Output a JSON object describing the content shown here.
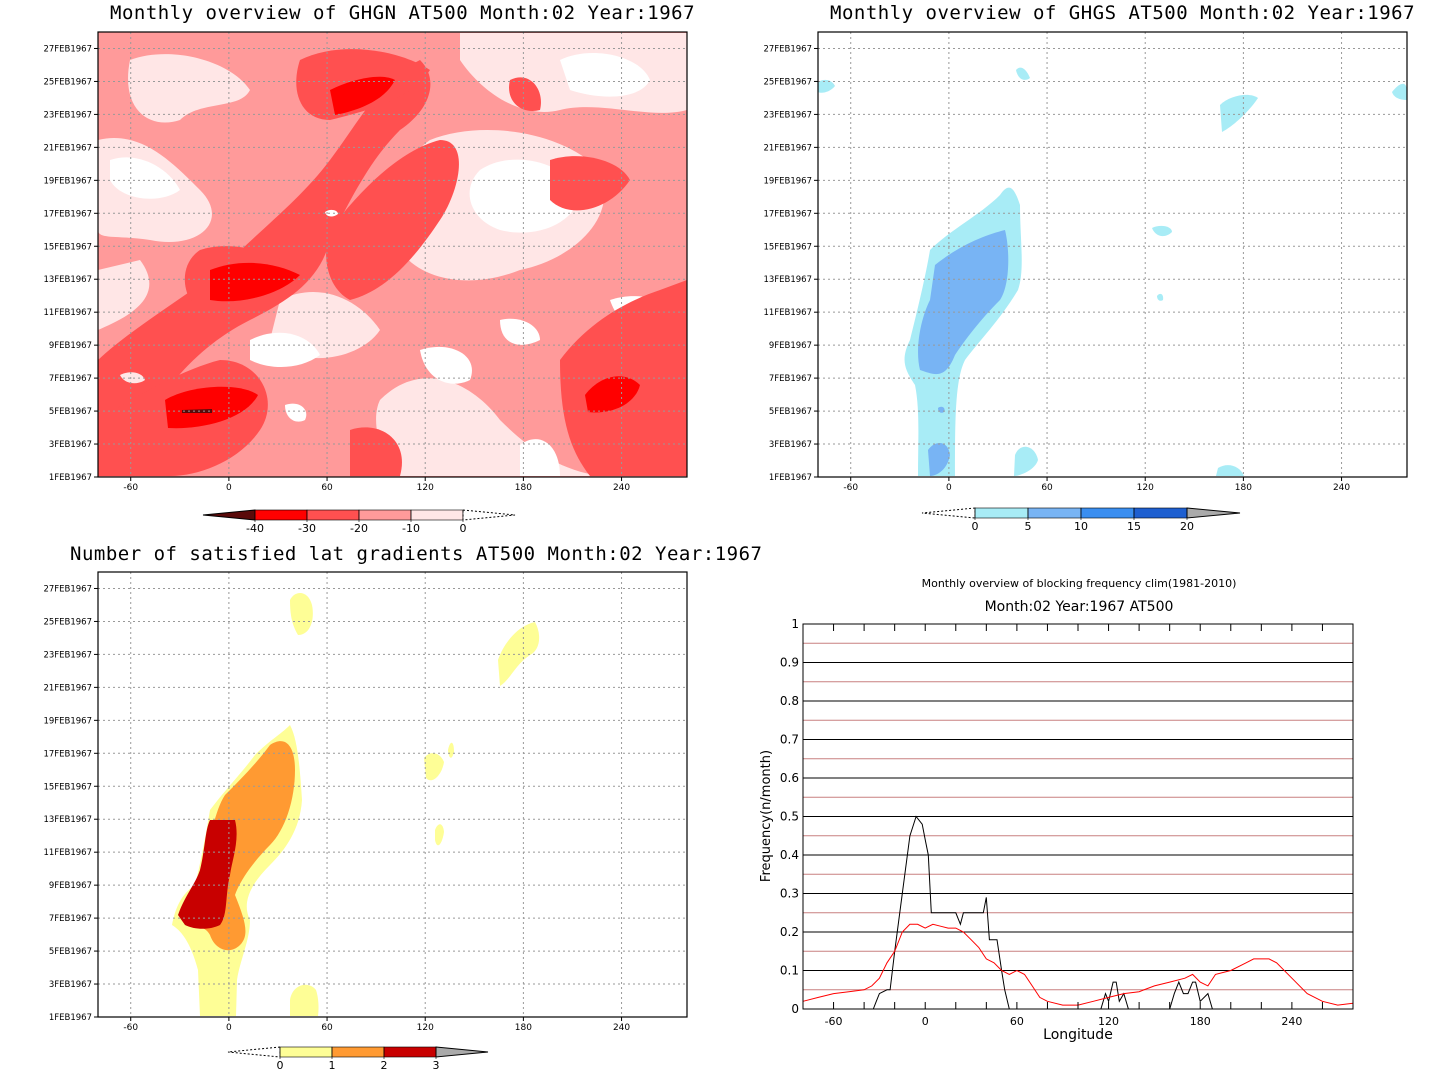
{
  "panels": {
    "ghgn": {
      "title": "Monthly overview of GHGN AT500 Month:02 Year:1967",
      "colorbar_labels": [
        "-40",
        "-30",
        "-20",
        "-10",
        "0"
      ],
      "colors": [
        "#5a0a0a",
        "#ff0000",
        "#ff5050",
        "#ff9a9a",
        "#ffe6e6",
        "#ffffff"
      ]
    },
    "ghgs": {
      "title": "Monthly overview of GHGS AT500 Month:02 Year:1967",
      "colorbar_labels": [
        "0",
        "5",
        "10",
        "15",
        "20"
      ],
      "colors": [
        "#ffffff",
        "#a8ecf6",
        "#78b4f4",
        "#3a8ef0",
        "#1e5fd0",
        "#aaaaaa"
      ]
    },
    "grad": {
      "title": "Number of satisfied lat gradients AT500 Month:02 Year:1967",
      "colorbar_labels": [
        "0",
        "1",
        "2",
        "3"
      ],
      "colors": [
        "#ffffff",
        "#fefe96",
        "#ff9a32",
        "#c80000",
        "#aaaaaa"
      ]
    },
    "freq": {
      "title": "Monthly overview of blocking frequency clim(1981-2010)",
      "subtitle": "Month:02 Year:1967  AT500"
    }
  },
  "axes": {
    "y_ticks": [
      "1FEB1967",
      "3FEB1967",
      "5FEB1967",
      "7FEB1967",
      "9FEB1967",
      "11FEB1967",
      "13FEB1967",
      "15FEB1967",
      "17FEB1967",
      "19FEB1967",
      "21FEB1967",
      "23FEB1967",
      "25FEB1967",
      "27FEB1967"
    ],
    "x_ticks": [
      "-60",
      "0",
      "60",
      "120",
      "180",
      "240"
    ],
    "freq_y_ticks": [
      "0",
      "0.1",
      "0.2",
      "0.3",
      "0.4",
      "0.5",
      "0.6",
      "0.7",
      "0.8",
      "0.9",
      "1"
    ],
    "freq_xlabel": "Longitude",
    "freq_ylabel": "Frequency(n/month)"
  },
  "chart_data": [
    {
      "type": "heatmap",
      "title": "Monthly overview of GHGN AT500 Month:02 Year:1967",
      "x_range": [
        -80,
        280
      ],
      "y_range": [
        "1FEB1967",
        "28FEB1967"
      ],
      "levels": [
        -40,
        -30,
        -20,
        -10,
        0
      ],
      "grid": true
    },
    {
      "type": "heatmap",
      "title": "Monthly overview of GHGS AT500 Month:02 Year:1967",
      "x_range": [
        -80,
        280
      ],
      "y_range": [
        "1FEB1967",
        "28FEB1967"
      ],
      "levels": [
        0,
        5,
        10,
        15,
        20
      ],
      "grid": true
    },
    {
      "type": "heatmap",
      "title": "Number of satisfied lat gradients AT500 Month:02 Year:1967",
      "x_range": [
        -80,
        280
      ],
      "y_range": [
        "1FEB1967",
        "28FEB1967"
      ],
      "levels": [
        0,
        1,
        2,
        3
      ],
      "grid": true
    },
    {
      "type": "line",
      "title": "Monthly overview of blocking frequency clim(1981-2010)",
      "subtitle": "Month:02 Year:1967  AT500",
      "xlabel": "Longitude",
      "ylabel": "Frequency(n/month)",
      "xlim": [
        -80,
        280
      ],
      "ylim": [
        0,
        1
      ],
      "series": [
        {
          "color": "#000000",
          "x": [
            -80,
            -40,
            -34,
            -32,
            -30,
            -25,
            -23,
            -20,
            -15,
            -10,
            -6,
            -2,
            0,
            2,
            4,
            5,
            10,
            15,
            18,
            20,
            23,
            25,
            30,
            35,
            38,
            40,
            42,
            47,
            50,
            52,
            55,
            70,
            115,
            118,
            120,
            123,
            125,
            127,
            130,
            133,
            160,
            163,
            166,
            169,
            172,
            175,
            177,
            180,
            185,
            188,
            280
          ],
          "y": [
            0,
            0,
            0,
            0.02,
            0.04,
            0.05,
            0.05,
            0.15,
            0.3,
            0.45,
            0.5,
            0.48,
            0.44,
            0.4,
            0.25,
            0.25,
            0.25,
            0.25,
            0.25,
            0.25,
            0.22,
            0.25,
            0.25,
            0.25,
            0.25,
            0.29,
            0.18,
            0.18,
            0.1,
            0.05,
            0,
            0,
            0,
            0.04,
            0.02,
            0.07,
            0.07,
            0.02,
            0.04,
            0,
            0,
            0.04,
            0.07,
            0.04,
            0.04,
            0.07,
            0.07,
            0.02,
            0.04,
            0,
            0
          ]
        },
        {
          "color": "#ff0000",
          "x": [
            -80,
            -70,
            -60,
            -50,
            -40,
            -35,
            -30,
            -25,
            -20,
            -15,
            -10,
            -5,
            0,
            5,
            10,
            15,
            20,
            25,
            30,
            35,
            40,
            45,
            50,
            55,
            60,
            65,
            70,
            75,
            80,
            90,
            100,
            110,
            120,
            130,
            140,
            150,
            160,
            170,
            175,
            180,
            185,
            190,
            200,
            210,
            215,
            220,
            225,
            230,
            240,
            250,
            260,
            270,
            280
          ],
          "y": [
            0.02,
            0.03,
            0.04,
            0.045,
            0.05,
            0.06,
            0.08,
            0.12,
            0.15,
            0.2,
            0.22,
            0.22,
            0.21,
            0.22,
            0.215,
            0.21,
            0.21,
            0.2,
            0.18,
            0.16,
            0.13,
            0.12,
            0.1,
            0.09,
            0.1,
            0.09,
            0.06,
            0.03,
            0.02,
            0.01,
            0.01,
            0.02,
            0.03,
            0.04,
            0.045,
            0.06,
            0.07,
            0.08,
            0.09,
            0.07,
            0.06,
            0.09,
            0.1,
            0.12,
            0.13,
            0.13,
            0.13,
            0.12,
            0.08,
            0.04,
            0.02,
            0.01,
            0.015
          ]
        }
      ],
      "hlines_red": [
        0.05,
        0.15,
        0.25,
        0.35,
        0.45,
        0.55,
        0.65,
        0.75,
        0.85,
        0.95
      ],
      "hlines_black": [
        0.1,
        0.2,
        0.3,
        0.4,
        0.5,
        0.6,
        0.7,
        0.8,
        0.9
      ]
    }
  ]
}
